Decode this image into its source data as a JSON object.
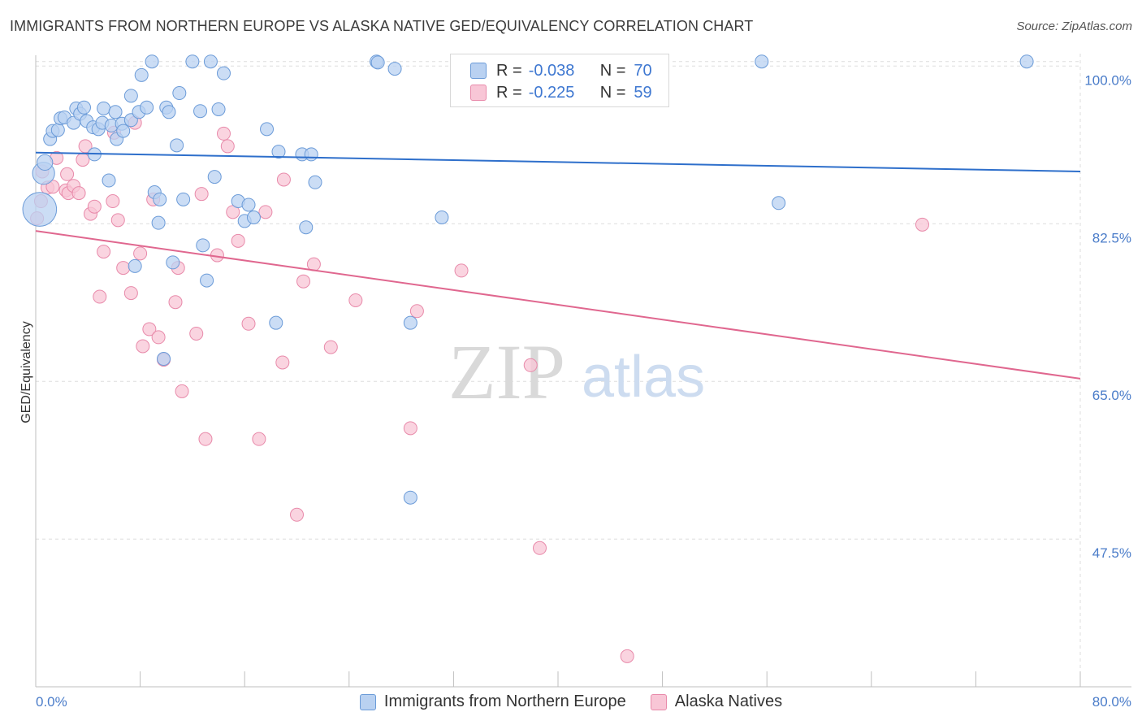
{
  "header": {
    "title": "IMMIGRANTS FROM NORTHERN EUROPE VS ALASKA NATIVE GED/EQUIVALENCY CORRELATION CHART",
    "source": "Source: ZipAtlas.com"
  },
  "watermark": {
    "zip": "ZIP",
    "atlas": "atlas"
  },
  "legend": {
    "rows": [
      {
        "r_label": "R =",
        "r_value": "-0.038",
        "n_label": "N =",
        "n_value": "70"
      },
      {
        "r_label": "R =",
        "r_value": "-0.225",
        "n_label": "N =",
        "n_value": "59"
      }
    ]
  },
  "colors": {
    "blue_fill": "#b9d1f1",
    "blue_stroke": "#6b9bd8",
    "blue_line": "#2e6fcb",
    "pink_fill": "#f8c6d6",
    "pink_stroke": "#e88aaa",
    "pink_line": "#e0678f",
    "grid": "#dddddd",
    "tick_label": "#4a7cc9"
  },
  "chart_data": {
    "type": "scatter",
    "title": "IMMIGRANTS FROM NORTHERN EUROPE VS ALASKA NATIVE GED/EQUIVALENCY CORRELATION CHART",
    "xlabel": "",
    "ylabel": "GED/Equivalency",
    "xlim": [
      0,
      80
    ],
    "ylim": [
      31.1,
      102.1
    ],
    "x_tick_labels": [
      {
        "value": 0,
        "label": "0.0%"
      },
      {
        "value": 80,
        "label": "80.0%"
      }
    ],
    "y_tick_labels": [
      {
        "value": 100,
        "label": "100.0%"
      },
      {
        "value": 82.5,
        "label": "82.5%"
      },
      {
        "value": 65,
        "label": "65.0%"
      },
      {
        "value": 47.5,
        "label": "47.5%"
      }
    ],
    "grid": true,
    "legend_position": "top-center",
    "series": [
      {
        "name": "Immigrants from Northern Europe",
        "color": "#b9d1f1",
        "regression": {
          "x": [
            0,
            80
          ],
          "y": [
            90.4,
            88.3
          ]
        },
        "points": [
          [
            0.3,
            84.1,
            2.6
          ],
          [
            0.6,
            88.1,
            1.7
          ],
          [
            0.7,
            89.3,
            1.2
          ],
          [
            1.1,
            91.9,
            1.0
          ],
          [
            1.3,
            92.8,
            1.0
          ],
          [
            1.7,
            92.9,
            1.0
          ],
          [
            1.9,
            94.2,
            1.0
          ],
          [
            2.2,
            94.3,
            1.0
          ],
          [
            2.9,
            93.7,
            1.0
          ],
          [
            3.1,
            95.3,
            1.0
          ],
          [
            3.4,
            94.7,
            1.0
          ],
          [
            3.7,
            95.4,
            1.0
          ],
          [
            3.9,
            93.9,
            1.0
          ],
          [
            4.4,
            93.2,
            1.0
          ],
          [
            4.5,
            90.2,
            1.0
          ],
          [
            4.8,
            93.0,
            1.0
          ],
          [
            5.1,
            93.7,
            1.0
          ],
          [
            5.2,
            95.3,
            1.0
          ],
          [
            5.6,
            87.3,
            1.0
          ],
          [
            5.8,
            93.4,
            1.0
          ],
          [
            6.1,
            94.9,
            1.0
          ],
          [
            6.2,
            91.9,
            1.0
          ],
          [
            6.6,
            93.6,
            1.0
          ],
          [
            6.7,
            92.8,
            1.0
          ],
          [
            7.3,
            94.0,
            1.0
          ],
          [
            7.3,
            96.7,
            1.0
          ],
          [
            7.6,
            77.8,
            1.0
          ],
          [
            7.9,
            94.9,
            1.0
          ],
          [
            8.1,
            99.0,
            1.0
          ],
          [
            8.5,
            95.4,
            1.0
          ],
          [
            8.9,
            100.5,
            1.0
          ],
          [
            9.1,
            86.0,
            1.0
          ],
          [
            9.4,
            82.6,
            1.0
          ],
          [
            9.5,
            85.2,
            1.0
          ],
          [
            9.8,
            67.5,
            1.0
          ],
          [
            10.0,
            95.4,
            1.0
          ],
          [
            10.2,
            94.9,
            1.0
          ],
          [
            10.5,
            78.2,
            1.0
          ],
          [
            10.8,
            91.2,
            1.0
          ],
          [
            11.0,
            97.0,
            1.0
          ],
          [
            11.3,
            85.2,
            1.0
          ],
          [
            12.0,
            100.5,
            1.0
          ],
          [
            12.6,
            95.0,
            1.0
          ],
          [
            12.8,
            80.1,
            1.0
          ],
          [
            13.1,
            76.2,
            1.0
          ],
          [
            13.4,
            100.5,
            1.0
          ],
          [
            13.7,
            87.7,
            1.0
          ],
          [
            14.0,
            95.2,
            1.0
          ],
          [
            14.4,
            99.2,
            1.0
          ],
          [
            15.5,
            85.0,
            1.0
          ],
          [
            16.0,
            82.8,
            1.0
          ],
          [
            16.3,
            84.6,
            1.0
          ],
          [
            16.7,
            83.2,
            1.0
          ],
          [
            17.7,
            93.0,
            1.0
          ],
          [
            18.4,
            71.5,
            1.0
          ],
          [
            18.6,
            90.5,
            1.0
          ],
          [
            20.4,
            90.2,
            1.0
          ],
          [
            20.7,
            82.1,
            1.0
          ],
          [
            21.1,
            90.2,
            1.0
          ],
          [
            21.4,
            87.1,
            1.0
          ],
          [
            26.1,
            100.5,
            1.0
          ],
          [
            26.2,
            100.4,
            1.0
          ],
          [
            27.5,
            99.7,
            1.0
          ],
          [
            28.7,
            71.5,
            1.0
          ],
          [
            28.7,
            52.1,
            1.0
          ],
          [
            31.1,
            83.2,
            1.0
          ],
          [
            33.0,
            100.5,
            1.0
          ],
          [
            55.6,
            100.5,
            1.0
          ],
          [
            56.9,
            84.8,
            1.0
          ],
          [
            75.9,
            100.5,
            1.0
          ]
        ]
      },
      {
        "name": "Alaska Natives",
        "color": "#f8c6d6",
        "regression": {
          "x": [
            0,
            80
          ],
          "y": [
            81.7,
            65.3
          ]
        },
        "points": [
          [
            0.1,
            83.1
          ],
          [
            0.4,
            85.0
          ],
          [
            0.5,
            88.3
          ],
          [
            0.9,
            86.5
          ],
          [
            1.3,
            86.6
          ],
          [
            1.6,
            89.8
          ],
          [
            2.3,
            86.2
          ],
          [
            2.4,
            88.0
          ],
          [
            2.5,
            85.9
          ],
          [
            2.9,
            86.7
          ],
          [
            3.3,
            85.9
          ],
          [
            3.6,
            89.6
          ],
          [
            3.8,
            91.1
          ],
          [
            4.2,
            83.6
          ],
          [
            4.5,
            84.4
          ],
          [
            4.9,
            74.4
          ],
          [
            5.2,
            79.4
          ],
          [
            5.9,
            85.0
          ],
          [
            6.0,
            92.6
          ],
          [
            6.3,
            82.9
          ],
          [
            6.7,
            77.6
          ],
          [
            7.3,
            74.8
          ],
          [
            7.6,
            93.7
          ],
          [
            8.0,
            79.2
          ],
          [
            8.2,
            68.9
          ],
          [
            8.7,
            70.8
          ],
          [
            9.0,
            85.2
          ],
          [
            9.4,
            69.9
          ],
          [
            9.8,
            67.4
          ],
          [
            10.7,
            73.8
          ],
          [
            10.9,
            77.6
          ],
          [
            11.2,
            63.9
          ],
          [
            12.3,
            70.3
          ],
          [
            12.7,
            85.8
          ],
          [
            13.0,
            58.6
          ],
          [
            13.9,
            79.0
          ],
          [
            14.4,
            92.5
          ],
          [
            14.7,
            91.1
          ],
          [
            15.1,
            83.8
          ],
          [
            15.5,
            80.6
          ],
          [
            16.3,
            71.4
          ],
          [
            17.1,
            58.6
          ],
          [
            17.6,
            83.8
          ],
          [
            18.9,
            67.1
          ],
          [
            19.0,
            87.4
          ],
          [
            20.0,
            50.2
          ],
          [
            20.5,
            76.1
          ],
          [
            21.3,
            78.0
          ],
          [
            22.6,
            68.8
          ],
          [
            24.5,
            74.0
          ],
          [
            28.7,
            59.8
          ],
          [
            29.2,
            72.8
          ],
          [
            32.6,
            77.3
          ],
          [
            37.9,
            66.8
          ],
          [
            38.6,
            46.5
          ],
          [
            41.0,
            100.3
          ],
          [
            44.3,
            100.3
          ],
          [
            45.3,
            34.5
          ],
          [
            67.9,
            82.4
          ]
        ]
      }
    ]
  }
}
